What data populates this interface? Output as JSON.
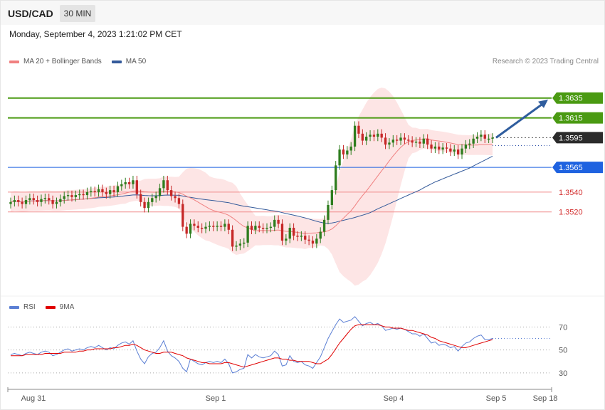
{
  "header": {
    "symbol": "USD/CAD",
    "timeframe": "30 MIN",
    "datetime": "Monday, September 4, 2023 1:21:02 PM CET"
  },
  "legend": {
    "ma20": {
      "label": "MA 20 + Bollinger Bands",
      "color": "#f08080"
    },
    "ma50": {
      "label": "MA 50",
      "color": "#345a9a"
    }
  },
  "credit": "Research © 2023 Trading Central",
  "rsi_legend": {
    "rsi": {
      "label": "RSI",
      "color": "#5b7fd4"
    },
    "ma9": {
      "label": "9MA",
      "color": "#e00000"
    }
  },
  "colors": {
    "up": "#2e7d1e",
    "down": "#c62828",
    "resistance": "#4a9a12",
    "pivot": "#1e62e0",
    "support": "#f08a8a",
    "support_text": "#d32f2f",
    "last": "#2b2b2b",
    "band": "#fde0e0",
    "arrow": "#2f5d9e"
  },
  "chart_data": [
    {
      "type": "candlestick",
      "title": "USD/CAD 30 MIN",
      "x_labels": [
        "Aug 31",
        "Sep 1",
        "Sep 4",
        "Sep 5",
        "Sep 18"
      ],
      "ylim": [
        1.3435,
        1.3665
      ],
      "last_price": 1.3595,
      "levels": [
        {
          "label": "1.3635",
          "value": 1.3635,
          "kind": "resistance"
        },
        {
          "label": "1.3615",
          "value": 1.3615,
          "kind": "resistance"
        },
        {
          "label": "1.3595",
          "value": 1.3595,
          "kind": "last"
        },
        {
          "label": "1.3565",
          "value": 1.3565,
          "kind": "pivot"
        },
        {
          "label": "1.3540",
          "value": 1.354,
          "kind": "support"
        },
        {
          "label": "1.3520",
          "value": 1.352,
          "kind": "support"
        }
      ],
      "closes": [
        1.353,
        1.3532,
        1.353,
        1.3528,
        1.3532,
        1.3534,
        1.3532,
        1.353,
        1.3533,
        1.3534,
        1.3532,
        1.3528,
        1.353,
        1.3533,
        1.3536,
        1.3537,
        1.3535,
        1.3537,
        1.3538,
        1.3537,
        1.354,
        1.3541,
        1.354,
        1.3543,
        1.354,
        1.3538,
        1.3542,
        1.354,
        1.3546,
        1.3548,
        1.355,
        1.3548,
        1.3552,
        1.3538,
        1.353,
        1.3524,
        1.353,
        1.3534,
        1.3536,
        1.3544,
        1.3552,
        1.3542,
        1.3536,
        1.3534,
        1.3528,
        1.3505,
        1.3498,
        1.3508,
        1.3506,
        1.3504,
        1.3503,
        1.3505,
        1.3506,
        1.3505,
        1.3506,
        1.3505,
        1.3508,
        1.3502,
        1.3485,
        1.3486,
        1.3488,
        1.3489,
        1.3506,
        1.3502,
        1.3506,
        1.3504,
        1.3503,
        1.3504,
        1.3505,
        1.3512,
        1.3508,
        1.3491,
        1.3493,
        1.3504,
        1.3496,
        1.3495,
        1.3496,
        1.3492,
        1.3491,
        1.3488,
        1.3493,
        1.35,
        1.3512,
        1.3527,
        1.3542,
        1.3567,
        1.3583,
        1.3578,
        1.3582,
        1.3586,
        1.3607,
        1.3599,
        1.3592,
        1.3596,
        1.3598,
        1.3596,
        1.3599,
        1.3595,
        1.3588,
        1.359,
        1.3593,
        1.3592,
        1.3595,
        1.3593,
        1.3592,
        1.359,
        1.3591,
        1.3589,
        1.3594,
        1.3588,
        1.3584,
        1.3586,
        1.3583,
        1.3585,
        1.3584,
        1.3581,
        1.3583,
        1.3578,
        1.3584,
        1.3588,
        1.3589,
        1.3594,
        1.3596,
        1.3598,
        1.3594,
        1.3594,
        1.3595
      ],
      "rsi": {
        "levels": [
          70,
          50,
          30
        ],
        "ylim": [
          20,
          82
        ],
        "values": [
          46,
          47,
          46,
          45,
          47,
          48,
          47,
          46,
          48,
          49,
          48,
          45,
          46,
          48,
          50,
          51,
          49,
          50,
          51,
          50,
          52,
          53,
          52,
          54,
          52,
          50,
          52,
          51,
          54,
          56,
          57,
          55,
          58,
          49,
          42,
          38,
          44,
          47,
          48,
          52,
          58,
          49,
          45,
          43,
          40,
          34,
          31,
          42,
          40,
          38,
          37,
          39,
          40,
          39,
          40,
          39,
          42,
          38,
          30,
          31,
          33,
          34,
          46,
          43,
          46,
          44,
          43,
          44,
          45,
          49,
          46,
          36,
          37,
          45,
          40,
          39,
          40,
          37,
          36,
          34,
          39,
          44,
          52,
          60,
          66,
          72,
          77,
          74,
          75,
          76,
          79,
          75,
          71,
          73,
          74,
          72,
          73,
          71,
          67,
          68,
          69,
          68,
          69,
          68,
          66,
          64,
          64,
          62,
          64,
          60,
          56,
          57,
          54,
          55,
          54,
          52,
          53,
          49,
          53,
          56,
          57,
          60,
          62,
          63,
          59,
          59,
          60
        ],
        "ma9": [
          45,
          45,
          45,
          45,
          46,
          46,
          46,
          46,
          46,
          47,
          47,
          47,
          47,
          47,
          48,
          48,
          48,
          48,
          49,
          49,
          50,
          50,
          51,
          51,
          51,
          51,
          51,
          52,
          52,
          53,
          54,
          54,
          55,
          54,
          52,
          50,
          49,
          48,
          47,
          47,
          48,
          48,
          48,
          47,
          46,
          45,
          43,
          42,
          41,
          40,
          39,
          39,
          38,
          38,
          38,
          38,
          39,
          39,
          38,
          37,
          36,
          35,
          36,
          37,
          38,
          39,
          40,
          41,
          42,
          43,
          43,
          42,
          42,
          41,
          41,
          40,
          40,
          40,
          40,
          39,
          38,
          38,
          40,
          42,
          46,
          51,
          56,
          60,
          64,
          68,
          71,
          72,
          72,
          72,
          72,
          72,
          72,
          71,
          70,
          70,
          69,
          69,
          69,
          68,
          67,
          67,
          66,
          65,
          64,
          63,
          61,
          60,
          58,
          57,
          56,
          55,
          54,
          53,
          52,
          52,
          53,
          54,
          55,
          56,
          57,
          58,
          59
        ]
      }
    }
  ]
}
